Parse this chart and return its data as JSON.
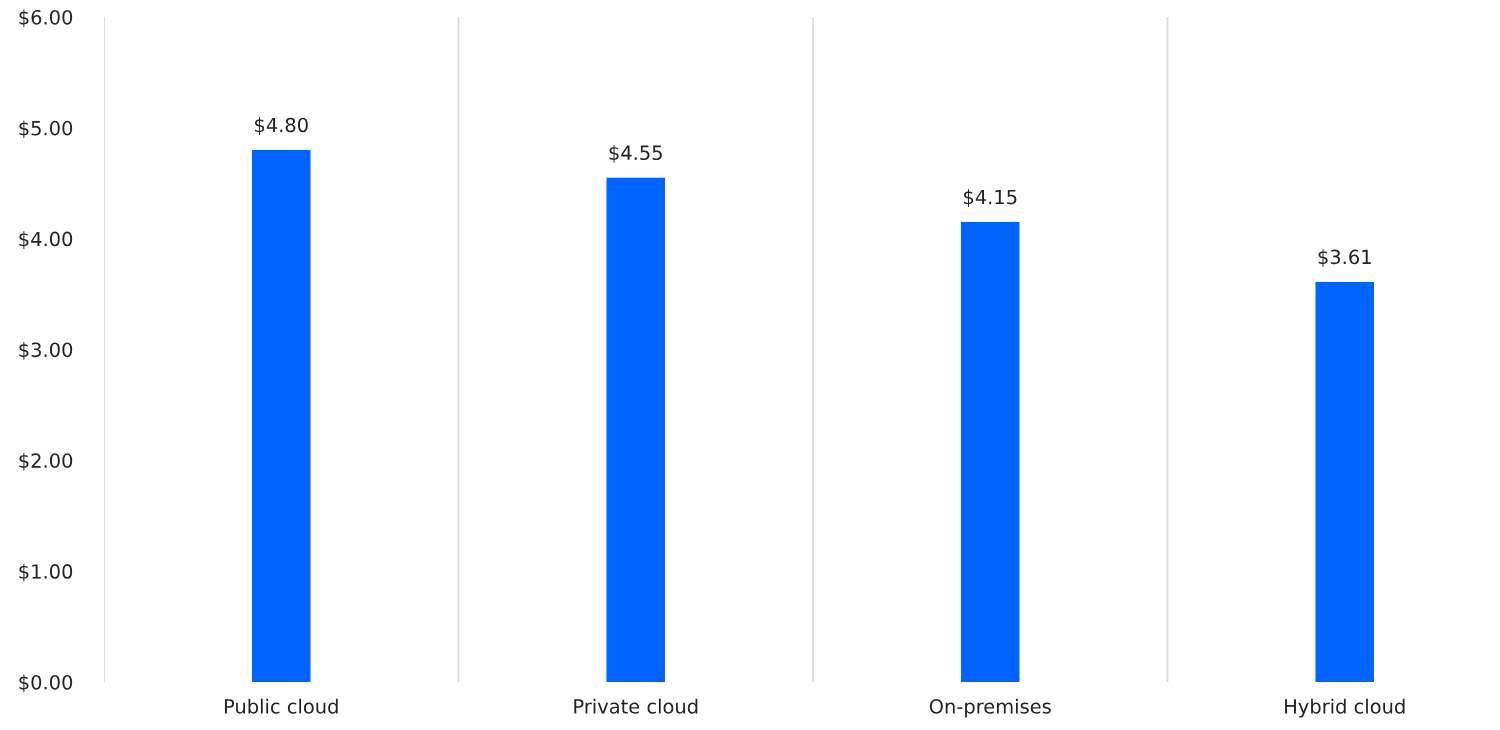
{
  "chart_data": {
    "type": "bar",
    "categories": [
      "Public cloud",
      "Private cloud",
      "On-premises",
      "Hybrid cloud"
    ],
    "values": [
      4.8,
      4.55,
      4.15,
      3.61
    ],
    "value_labels": [
      "$4.80",
      "$4.55",
      "$4.15",
      "$3.61"
    ],
    "color": "#0062ff",
    "ylim": [
      0,
      6
    ],
    "yticks": [
      {
        "value": 0,
        "label": "$0.00"
      },
      {
        "value": 1,
        "label": "$1.00"
      },
      {
        "value": 2,
        "label": "$2.00"
      },
      {
        "value": 3,
        "label": "$3.00"
      },
      {
        "value": 4,
        "label": "$4.00"
      },
      {
        "value": 5,
        "label": "$5.00"
      },
      {
        "value": 6,
        "label": "$6.00"
      }
    ],
    "grid": "x"
  }
}
